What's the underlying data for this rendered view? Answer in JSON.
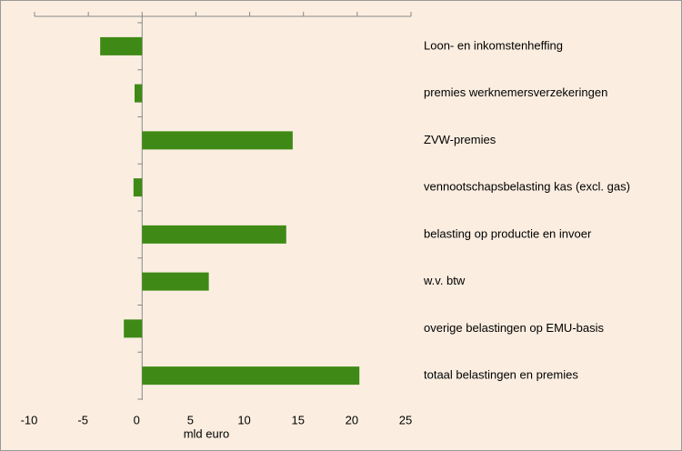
{
  "chart_data": {
    "type": "barh",
    "xlabel": "mld euro",
    "categories": [
      "Loon- en inkomstenheffing",
      "premies werknemersverzekeringen",
      "ZVW-premies",
      "vennootschapsbelasting kas (excl. gas)",
      "belasting op productie en invoer",
      "w.v. btw",
      "overige belastingen op EMU-basis",
      "totaal belastingen en premies"
    ],
    "values": [
      -3.9,
      -0.7,
      14.0,
      -0.8,
      13.4,
      6.2,
      -1.7,
      20.2
    ],
    "color": "#3f8a16",
    "xlim": [
      -10,
      25
    ],
    "xticks": [
      -10,
      -5,
      0,
      5,
      10,
      15,
      20,
      25
    ]
  }
}
